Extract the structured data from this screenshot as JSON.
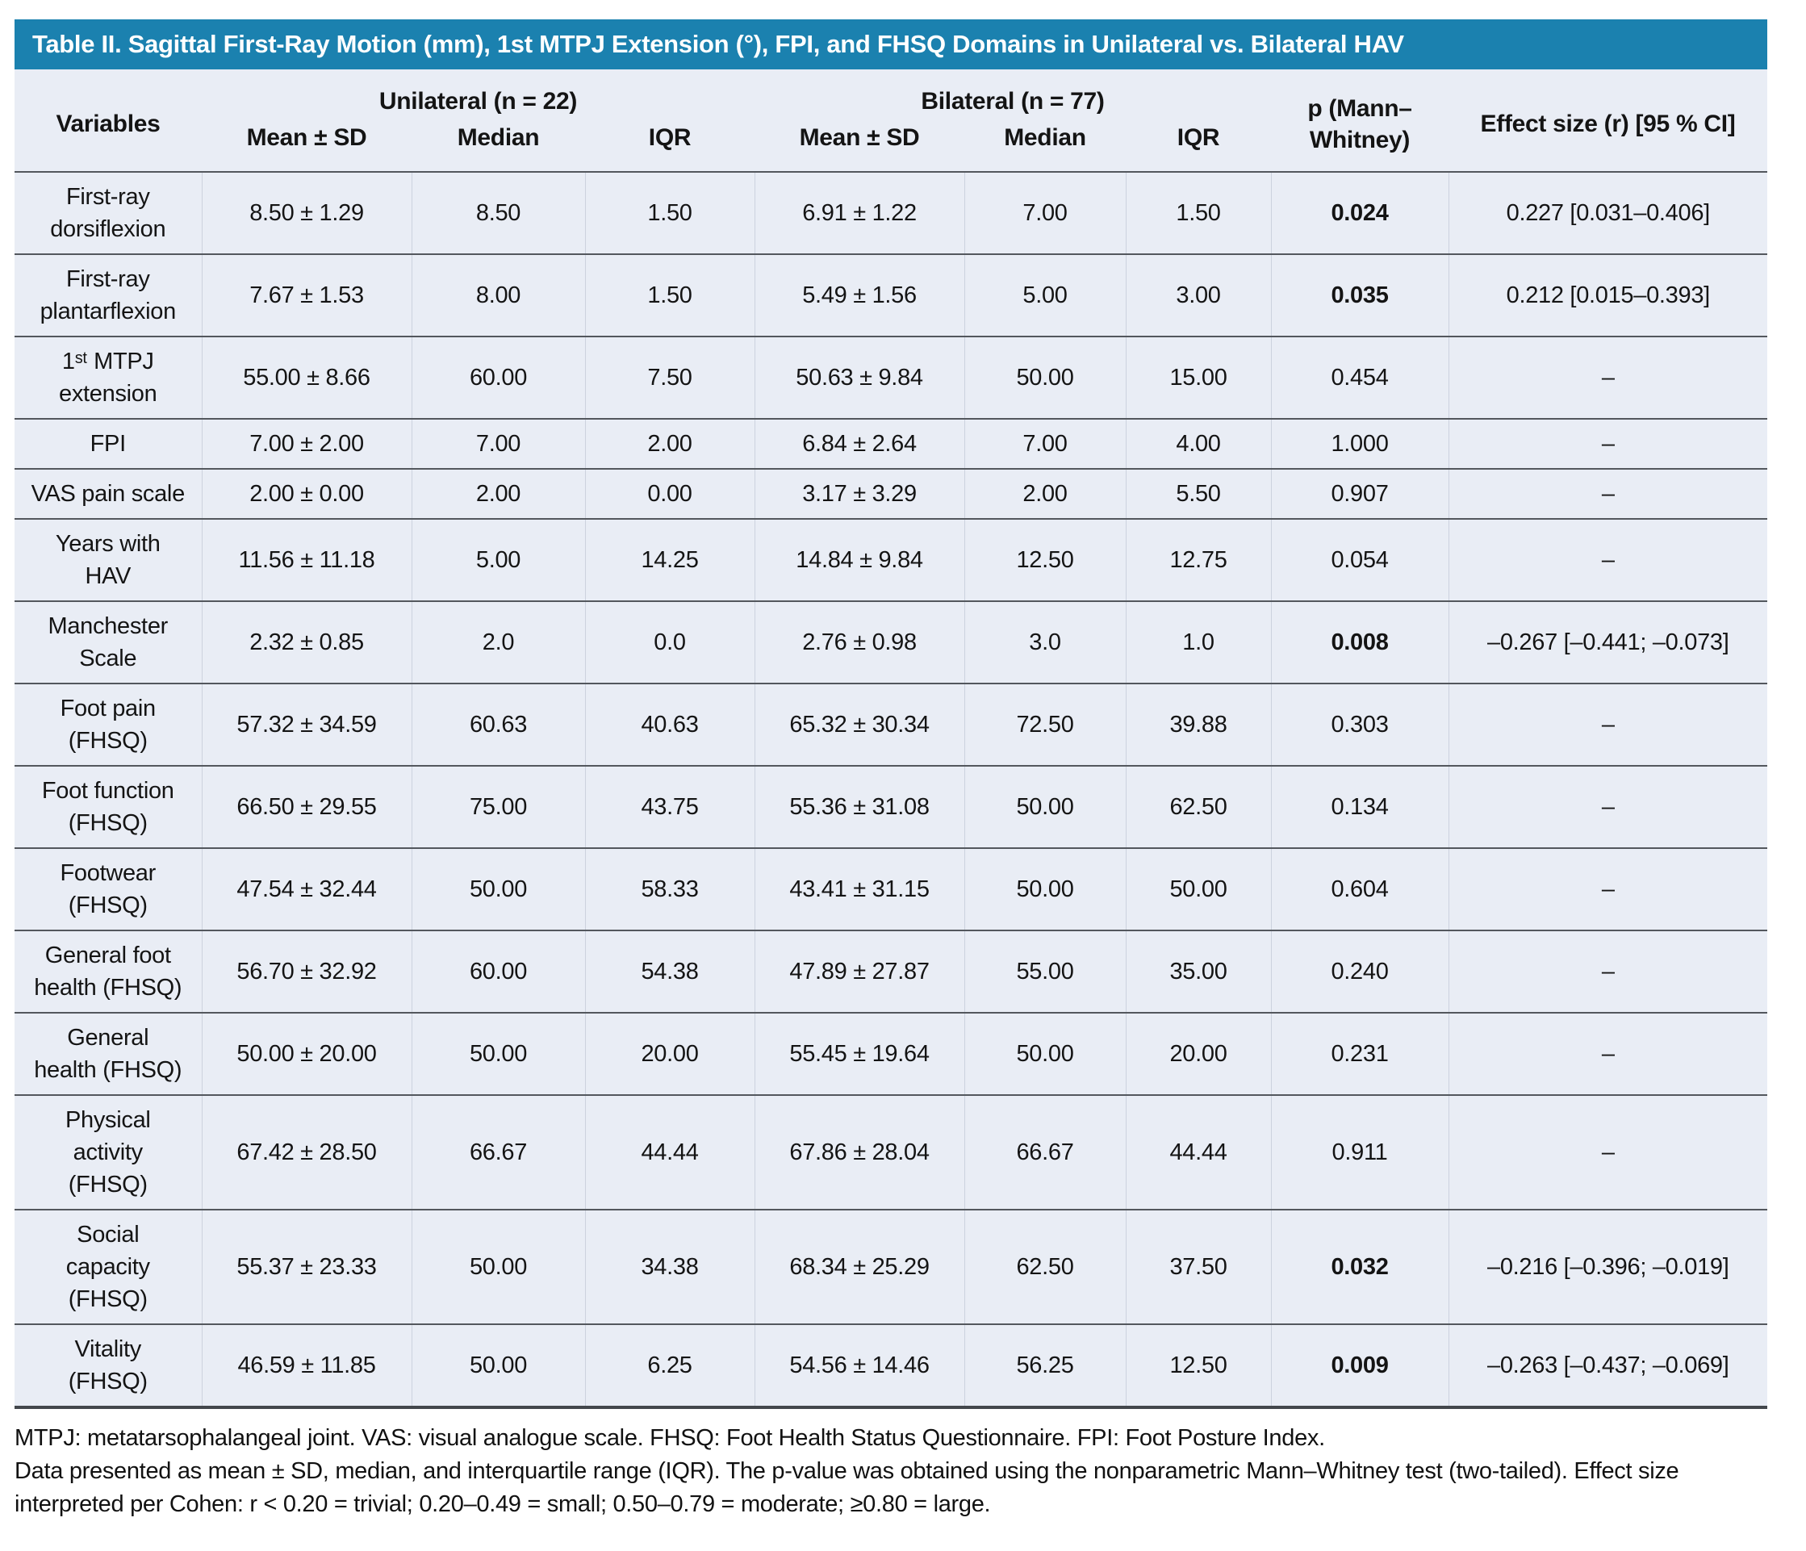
{
  "title": "Table II. Sagittal First-Ray Motion (mm), 1st MTPJ Extension (°), FPI, and FHSQ Domains in Unilateral vs. Bilateral HAV",
  "colors": {
    "title_bar_bg": "#1b81af",
    "table_bg": "#e9edf5",
    "row_line": "#53575d"
  },
  "table": {
    "col_headers": {
      "variables": "Variables",
      "group1": "Unilateral (n = 22)",
      "group2": "Bilateral (n = 77)",
      "sub": [
        "Mean ± SD",
        "Median",
        "IQR"
      ],
      "p": "p (Mann–\nWhitney)",
      "effect": "Effect size (r) [95 % CI]"
    },
    "rows": [
      {
        "variable": "First-ray\ndorsiflexion",
        "uni": [
          "8.50 ± 1.29",
          "8.50",
          "1.50"
        ],
        "bil": [
          "6.91 ± 1.22",
          "7.00",
          "1.50"
        ],
        "p": "0.024",
        "p_bold": true,
        "effect": "0.227 [0.031–0.406]"
      },
      {
        "variable": "First-ray\nplantarflexion",
        "uni": [
          "7.67 ± 1.53",
          "8.00",
          "1.50"
        ],
        "bil": [
          "5.49 ± 1.56",
          "5.00",
          "3.00"
        ],
        "p": "0.035",
        "p_bold": true,
        "effect": "0.212 [0.015–0.393]"
      },
      {
        "variable": "1ˢᵗ MTPJ\nextension",
        "uni": [
          "55.00 ± 8.66",
          "60.00",
          "7.50"
        ],
        "bil": [
          "50.63 ± 9.84",
          "50.00",
          "15.00"
        ],
        "p": "0.454",
        "p_bold": false,
        "effect": "–"
      },
      {
        "variable": "FPI",
        "uni": [
          "7.00 ± 2.00",
          "7.00",
          "2.00"
        ],
        "bil": [
          "6.84 ± 2.64",
          "7.00",
          "4.00"
        ],
        "p": "1.000",
        "p_bold": false,
        "effect": "–"
      },
      {
        "variable": "VAS pain scale",
        "uni": [
          "2.00 ± 0.00",
          "2.00",
          "0.00"
        ],
        "bil": [
          "3.17 ± 3.29",
          "2.00",
          "5.50"
        ],
        "p": "0.907",
        "p_bold": false,
        "effect": "–"
      },
      {
        "variable": "Years with\nHAV",
        "uni": [
          "11.56 ± 11.18",
          "5.00",
          "14.25"
        ],
        "bil": [
          "14.84 ± 9.84",
          "12.50",
          "12.75"
        ],
        "p": "0.054",
        "p_bold": false,
        "effect": "–"
      },
      {
        "variable": "Manchester\nScale",
        "uni": [
          "2.32 ± 0.85",
          "2.0",
          "0.0"
        ],
        "bil": [
          "2.76 ± 0.98",
          "3.0",
          "1.0"
        ],
        "p": "0.008",
        "p_bold": true,
        "effect": "–0.267 [–0.441; –0.073]"
      },
      {
        "variable": "Foot pain\n(FHSQ)",
        "uni": [
          "57.32 ± 34.59",
          "60.63",
          "40.63"
        ],
        "bil": [
          "65.32 ± 30.34",
          "72.50",
          "39.88"
        ],
        "p": "0.303",
        "p_bold": false,
        "effect": "–"
      },
      {
        "variable": "Foot function\n(FHSQ)",
        "uni": [
          "66.50 ± 29.55",
          "75.00",
          "43.75"
        ],
        "bil": [
          "55.36 ± 31.08",
          "50.00",
          "62.50"
        ],
        "p": "0.134",
        "p_bold": false,
        "effect": "–"
      },
      {
        "variable": "Footwear\n(FHSQ)",
        "uni": [
          "47.54 ± 32.44",
          "50.00",
          "58.33"
        ],
        "bil": [
          "43.41 ± 31.15",
          "50.00",
          "50.00"
        ],
        "p": "0.604",
        "p_bold": false,
        "effect": "–"
      },
      {
        "variable": "General foot\nhealth (FHSQ)",
        "uni": [
          "56.70 ± 32.92",
          "60.00",
          "54.38"
        ],
        "bil": [
          "47.89 ± 27.87",
          "55.00",
          "35.00"
        ],
        "p": "0.240",
        "p_bold": false,
        "effect": "–"
      },
      {
        "variable": "General\nhealth (FHSQ)",
        "uni": [
          "50.00 ± 20.00",
          "50.00",
          "20.00"
        ],
        "bil": [
          "55.45 ± 19.64",
          "50.00",
          "20.00"
        ],
        "p": "0.231",
        "p_bold": false,
        "effect": "–"
      },
      {
        "variable": "Physical\nactivity\n(FHSQ)",
        "uni": [
          "67.42 ± 28.50",
          "66.67",
          "44.44"
        ],
        "bil": [
          "67.86 ± 28.04",
          "66.67",
          "44.44"
        ],
        "p": "0.911",
        "p_bold": false,
        "effect": "–"
      },
      {
        "variable": "Social\ncapacity\n(FHSQ)",
        "uni": [
          "55.37 ± 23.33",
          "50.00",
          "34.38"
        ],
        "bil": [
          "68.34 ± 25.29",
          "62.50",
          "37.50"
        ],
        "p": "0.032",
        "p_bold": true,
        "effect": "–0.216 [–0.396; –0.019]"
      },
      {
        "variable": "Vitality\n(FHSQ)",
        "uni": [
          "46.59 ± 11.85",
          "50.00",
          "6.25"
        ],
        "bil": [
          "54.56 ± 14.46",
          "56.25",
          "12.50"
        ],
        "p": "0.009",
        "p_bold": true,
        "effect": "–0.263 [–0.437; –0.069]"
      }
    ]
  },
  "footnotes": [
    "MTPJ: metatarsophalangeal joint. VAS: visual analogue scale. FHSQ: Foot Health Status Questionnaire. FPI: Foot Posture Index.",
    "Data presented as mean ± SD, median, and interquartile range (IQR). The p-value was obtained using the nonparametric Mann–Whitney test (two-tailed). Effect size interpreted per Cohen: r < 0.20 = trivial; 0.20–0.49 = small; 0.50–0.79 = moderate; ≥0.80 = large."
  ]
}
